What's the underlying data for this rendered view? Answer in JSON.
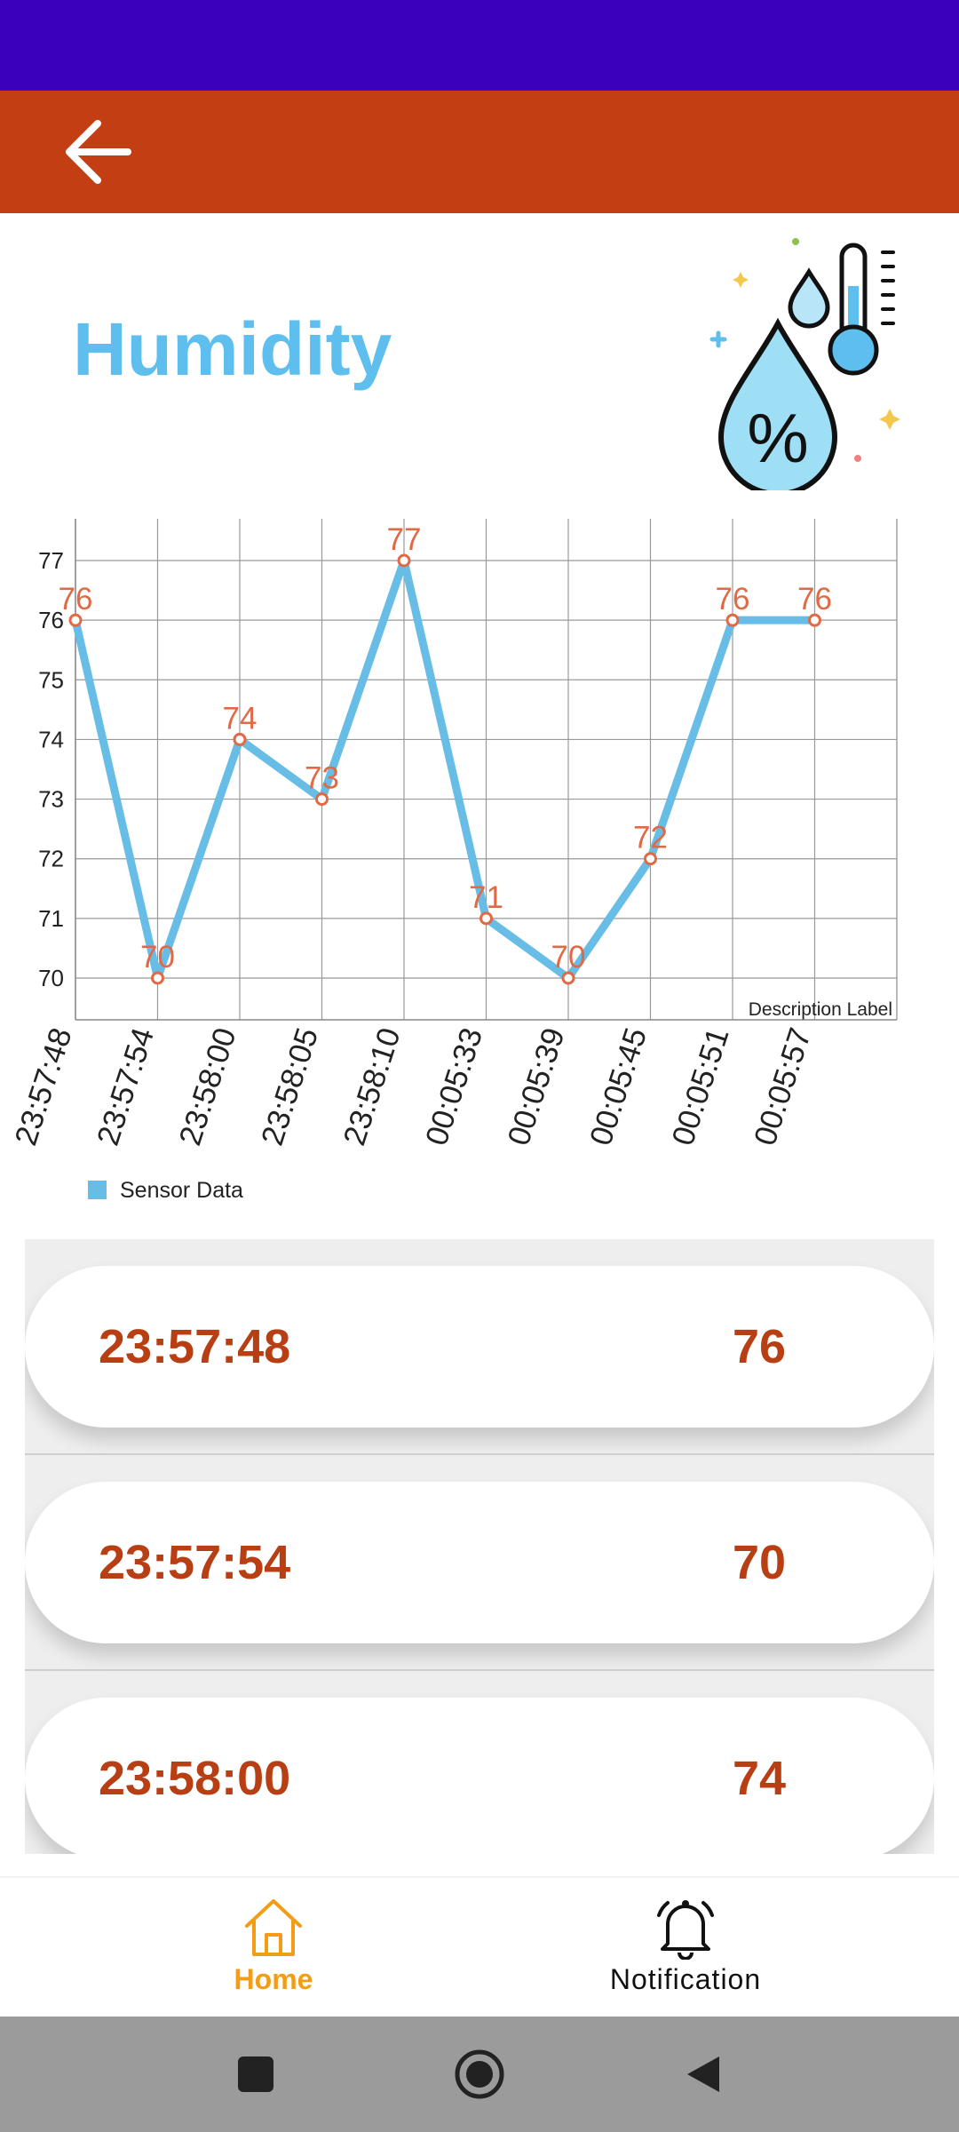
{
  "header": {
    "back_icon": "arrow-left-icon",
    "color": "#c43e13",
    "status_bar_color": "#3a00bb"
  },
  "page": {
    "title": "Humidity",
    "title_color": "#5ebfee",
    "illustration_icon": "humidity-thermometer-icon"
  },
  "chart_data": {
    "type": "line",
    "categories": [
      "23:57:48",
      "23:57:54",
      "23:58:00",
      "23:58:05",
      "23:58:10",
      "00:05:33",
      "00:05:39",
      "00:05:45",
      "00:05:51",
      "00:05:57"
    ],
    "series": [
      {
        "name": "Sensor Data",
        "values": [
          76,
          70,
          74,
          73,
          77,
          71,
          70,
          72,
          76,
          76
        ],
        "color": "#68bde6"
      }
    ],
    "value_label_color": "#e06a45",
    "y_ticks": [
      "70",
      "71",
      "72",
      "73",
      "74",
      "75",
      "76",
      "77"
    ],
    "ylim": [
      69.3,
      77.7
    ],
    "description": "Description Label",
    "grid": true,
    "legend_position": "bottom-left"
  },
  "readings": [
    {
      "time": "23:57:48",
      "value": "76"
    },
    {
      "time": "23:57:54",
      "value": "70"
    },
    {
      "time": "23:58:00",
      "value": "74"
    }
  ],
  "bottom_nav": {
    "items": [
      {
        "label": "Home",
        "icon": "home-icon",
        "active": true
      },
      {
        "label": "Notification",
        "icon": "bell-icon",
        "active": false
      }
    ],
    "active_color": "#f39c16"
  },
  "system_nav": {
    "icons": [
      "recent-apps-icon",
      "home-circle-icon",
      "back-triangle-icon"
    ]
  }
}
